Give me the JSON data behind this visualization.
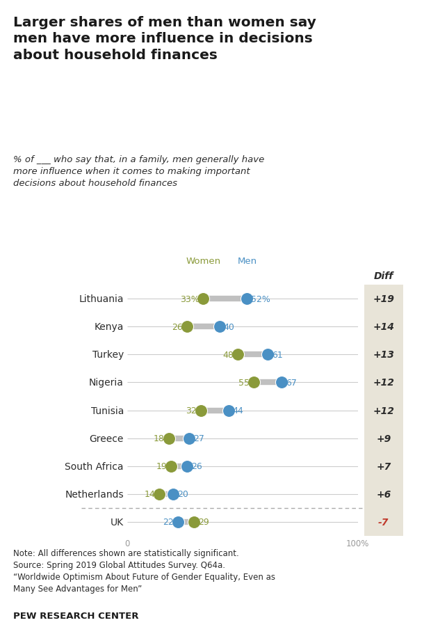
{
  "title": "Larger shares of men than women say\nmen have more influence in decisions\nabout household finances",
  "subtitle": "% of ___ who say that, in a family, men generally have\nmore influence when it comes to making important\ndecisions about household finances",
  "countries": [
    "Lithuania",
    "Kenya",
    "Turkey",
    "Nigeria",
    "Tunisia",
    "Greece",
    "South Africa",
    "Netherlands",
    "UK"
  ],
  "women_values": [
    33,
    26,
    48,
    55,
    32,
    18,
    19,
    14,
    29
  ],
  "men_values": [
    52,
    40,
    61,
    67,
    44,
    27,
    26,
    20,
    22
  ],
  "diff_values": [
    "+19",
    "+14",
    "+13",
    "+12",
    "+12",
    "+9",
    "+7",
    "+6",
    "-7"
  ],
  "diff_numeric": [
    19,
    14,
    13,
    12,
    12,
    9,
    7,
    6,
    -7
  ],
  "women_color": "#8a9a3a",
  "men_color": "#4a90c4",
  "connect_color": "#c0c0c0",
  "hline_color": "#cccccc",
  "xmin": 0,
  "xmax": 100,
  "note_text": "Note: All differences shown are statistically significant.\nSource: Spring 2019 Global Attitudes Survey. Q64a.\n“Worldwide Optimism About Future of Gender Equality, Even as\nMany See Advantages for Men”",
  "source_bold": "PEW RESEARCH CENTER",
  "diff_bg_color": "#e8e4d8",
  "diff_neg_color": "#c0392b",
  "diff_pos_color": "#2c2c2c",
  "background_color": "#ffffff",
  "text_color": "#2c2c2c"
}
